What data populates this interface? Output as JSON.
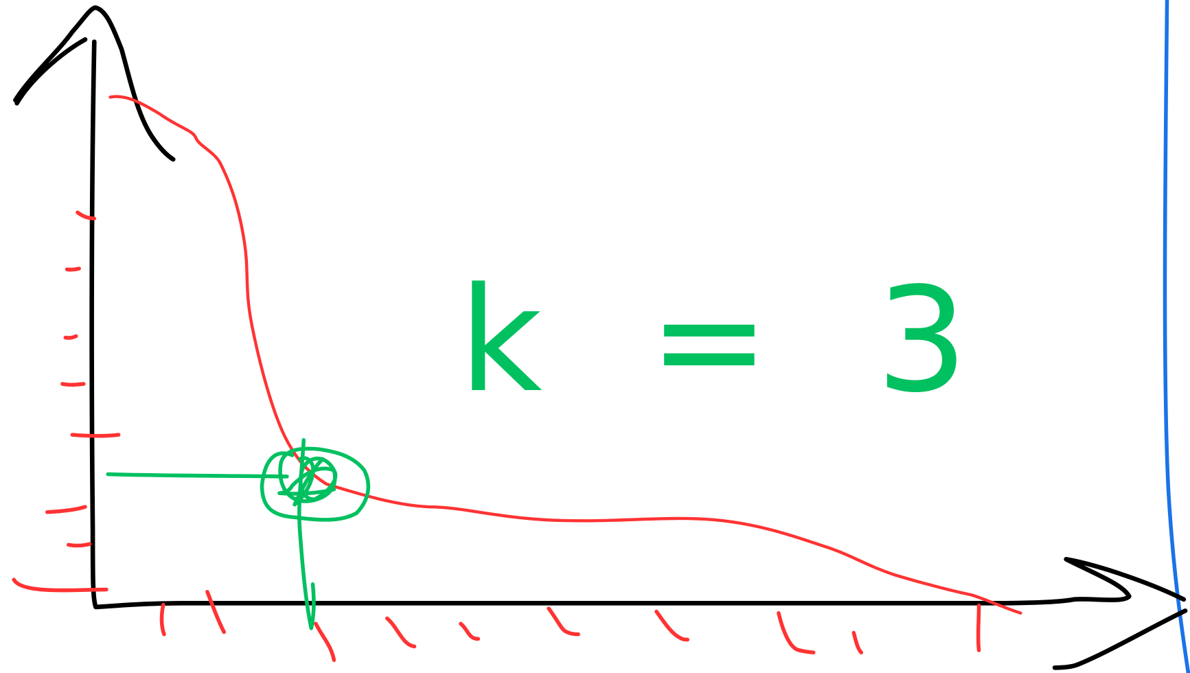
{
  "annotation": "k = 3"
}
